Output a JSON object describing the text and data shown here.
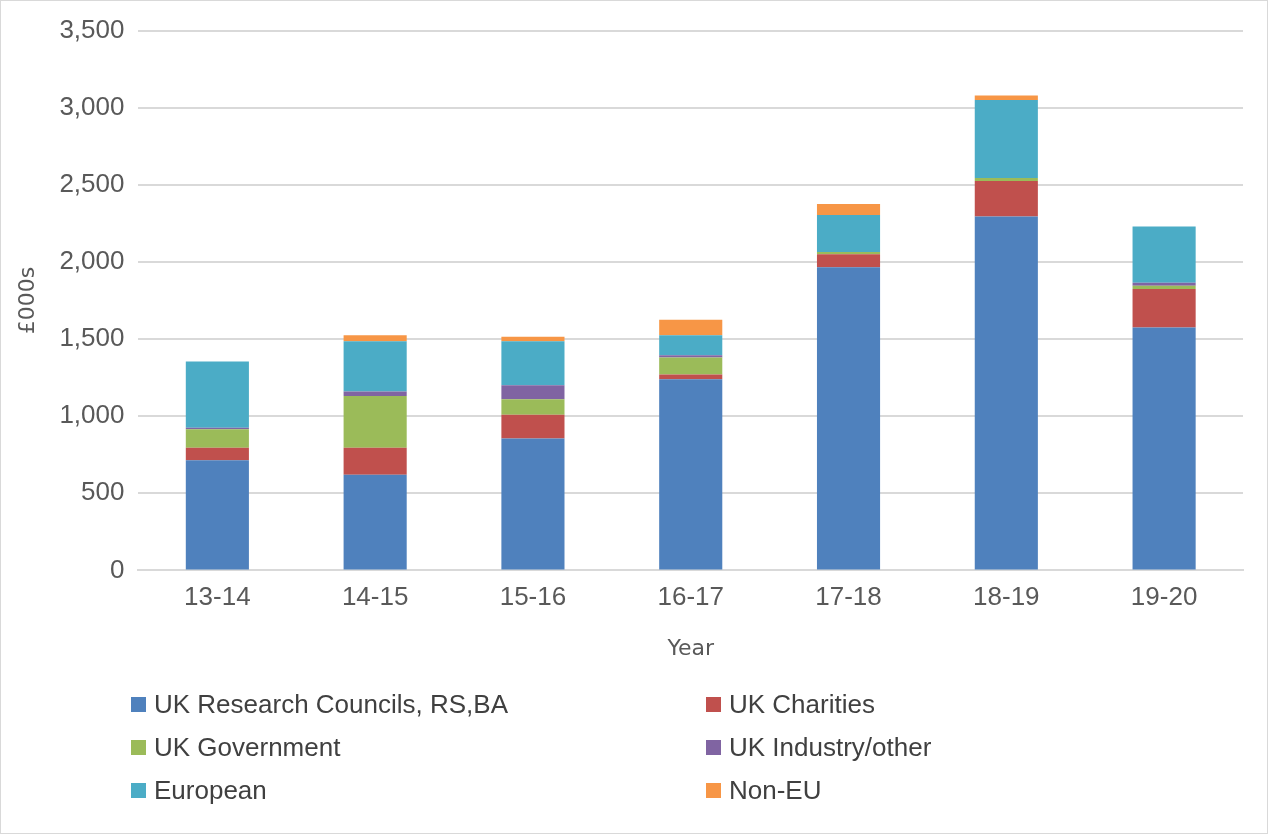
{
  "chart_data": {
    "type": "bar",
    "stacked": true,
    "xlabel": "Year",
    "ylabel": "£000s",
    "categories": [
      "13-14",
      "14-15",
      "15-16",
      "16-17",
      "17-18",
      "18-19",
      "19-20"
    ],
    "series": [
      {
        "name": "UK Research Councils, RS,BA",
        "color": "#4f81bd",
        "values": [
          715,
          620,
          855,
          1240,
          1965,
          2295,
          1575
        ]
      },
      {
        "name": "UK Charities",
        "color": "#c0504d",
        "values": [
          80,
          175,
          155,
          30,
          85,
          230,
          250
        ]
      },
      {
        "name": "UK Government",
        "color": "#9bbb59",
        "values": [
          120,
          335,
          100,
          110,
          15,
          20,
          20
        ]
      },
      {
        "name": "UK Industry/other",
        "color": "#8064a2",
        "values": [
          10,
          30,
          90,
          15,
          0,
          0,
          20
        ]
      },
      {
        "name": "European",
        "color": "#4bacc6",
        "values": [
          430,
          325,
          285,
          130,
          240,
          505,
          365
        ]
      },
      {
        "name": "Non-EU",
        "color": "#f79646",
        "values": [
          0,
          40,
          30,
          100,
          70,
          30,
          0
        ]
      }
    ],
    "ylim": [
      0,
      3500
    ],
    "yticks": [
      0,
      500,
      {
        "value": 1000,
        "label": "1,000"
      },
      {
        "value": 1500,
        "label": "1,500"
      },
      {
        "value": 2000,
        "label": "2,000"
      },
      {
        "value": 2500,
        "label": "2,500"
      },
      {
        "value": 3000,
        "label": "3,000"
      },
      {
        "value": 3500,
        "label": "3,500"
      }
    ],
    "grid": "y",
    "legend": "bottom"
  }
}
